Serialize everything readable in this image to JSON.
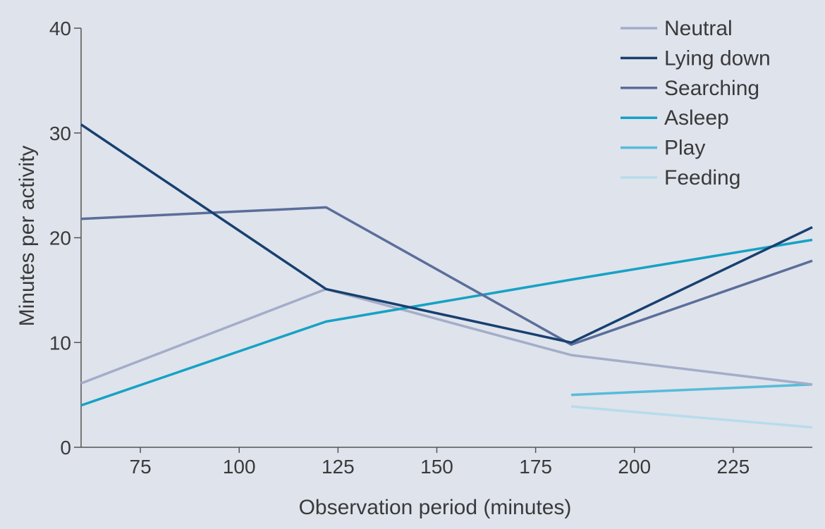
{
  "chart_data": {
    "type": "line",
    "xlabel": "Observation period (minutes)",
    "ylabel": "Minutes per activity",
    "xlim": [
      60,
      245
    ],
    "ylim": [
      0,
      40
    ],
    "x_ticks": [
      75,
      100,
      125,
      150,
      175,
      200,
      225
    ],
    "y_ticks": [
      0,
      10,
      20,
      30,
      40
    ],
    "legend_position": "top-right",
    "grid": false,
    "series": [
      {
        "name": "Neutral",
        "color": "#a4adc8",
        "points": [
          [
            60,
            6.1
          ],
          [
            122,
            15.1
          ],
          [
            184,
            8.8
          ],
          [
            245,
            6
          ]
        ]
      },
      {
        "name": "Lying down",
        "color": "#17406f",
        "points": [
          [
            60,
            30.8
          ],
          [
            122,
            15.1
          ],
          [
            184,
            10
          ],
          [
            245,
            21
          ]
        ]
      },
      {
        "name": "Searching",
        "color": "#5b6e9a",
        "points": [
          [
            60,
            21.8
          ],
          [
            122,
            22.9
          ],
          [
            184,
            9.8
          ],
          [
            245,
            17.8
          ]
        ]
      },
      {
        "name": "Asleep",
        "color": "#16a2c4",
        "points": [
          [
            60,
            4
          ],
          [
            122,
            12
          ],
          [
            184,
            16
          ],
          [
            245,
            19.8
          ]
        ]
      },
      {
        "name": "Play",
        "color": "#56bcd8",
        "points": [
          [
            184,
            5
          ],
          [
            245,
            6
          ]
        ]
      },
      {
        "name": "Feeding",
        "color": "#b7dcec",
        "points": [
          [
            184,
            3.9
          ],
          [
            245,
            1.9
          ]
        ]
      }
    ]
  }
}
